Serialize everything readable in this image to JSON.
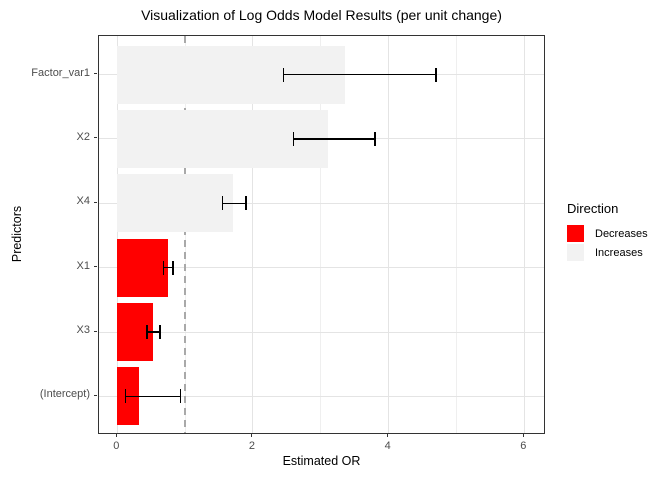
{
  "chart_data": {
    "type": "bar",
    "orientation": "horizontal",
    "title": "Visualization of Log Odds Model Results (per unit change)",
    "xlabel": "Estimated OR",
    "ylabel": "Predictors",
    "categories": [
      "Factor_var1",
      "X2",
      "X4",
      "X1",
      "X3",
      "(Intercept)"
    ],
    "series": [
      {
        "name": "Estimated OR",
        "values": [
          3.35,
          3.1,
          1.7,
          0.75,
          0.53,
          0.32
        ]
      }
    ],
    "error_bars": {
      "low": [
        2.45,
        2.6,
        1.55,
        0.68,
        0.44,
        0.12
      ],
      "high": [
        4.7,
        3.8,
        1.9,
        0.82,
        0.63,
        0.93
      ]
    },
    "direction": [
      "Increases",
      "Increases",
      "Increases",
      "Decreases",
      "Decreases",
      "Decreases"
    ],
    "reference_line_x": 1,
    "xlim": [
      -0.27,
      6.32
    ],
    "x_major_ticks": [
      0,
      2,
      4,
      6
    ],
    "x_minor_ticks": [
      1,
      3,
      5
    ],
    "grid": "on",
    "legend": {
      "title": "Direction",
      "position": "right",
      "items": [
        {
          "label": "Decreases",
          "color": "#FF0000"
        },
        {
          "label": "Increases",
          "color": "#F2F2F2"
        }
      ]
    },
    "colors": {
      "decreases_fill": "#FF0000",
      "increases_fill": "#F2F2F2",
      "reference_line": "#A9A9A9",
      "error_bar": "#000000",
      "panel_border": "#333333",
      "grid_major": "#E4E4E4",
      "grid_minor": "#EFEFEF"
    }
  }
}
